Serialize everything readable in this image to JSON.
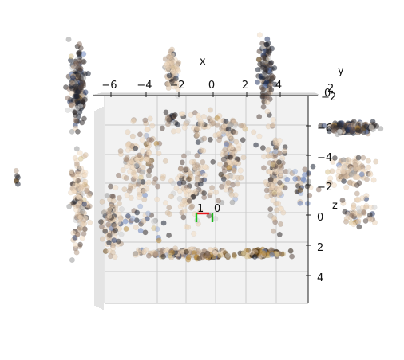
{
  "chart_data": {
    "type": "scatter",
    "projection": "3d",
    "title": "",
    "xlabel": "x",
    "ylabel": "y",
    "zlabel": "z",
    "x_ticks": [
      "−6",
      "−4",
      "−2",
      "0",
      "2",
      "4"
    ],
    "y_ticks": [
      "−2",
      "0",
      "2"
    ],
    "z_ticks": [
      "−6",
      "−4",
      "−2",
      "0",
      "2",
      "4"
    ],
    "x_range": [
      -7,
      5
    ],
    "y_range": [
      -3,
      3
    ],
    "z_range": [
      -7,
      5
    ],
    "grid": true,
    "pane_color": "#f2f2f2",
    "grid_color": "#c8c8c8",
    "marker_opacity": 0.55,
    "origin_axes": {
      "labels": [
        "1",
        "0"
      ],
      "colors": [
        "#e8161b",
        "#1ec21e",
        "#19b419"
      ]
    },
    "point_palette": [
      "#f2dcc2",
      "#ead2b7",
      "#d8bfa3",
      "#b79d86",
      "#8f7767",
      "#5b4b43",
      "#2f2a2a",
      "#1d2535",
      "#2a3a66",
      "#6d87bf",
      "#9fb3d8",
      "#d9c28e",
      "#b88a3c",
      "#6e4b1a",
      "#2b1e0e",
      "#9a9a9a",
      "#cfcfcf"
    ],
    "series": [
      {
        "name": "",
        "note": ""
      }
    ]
  }
}
